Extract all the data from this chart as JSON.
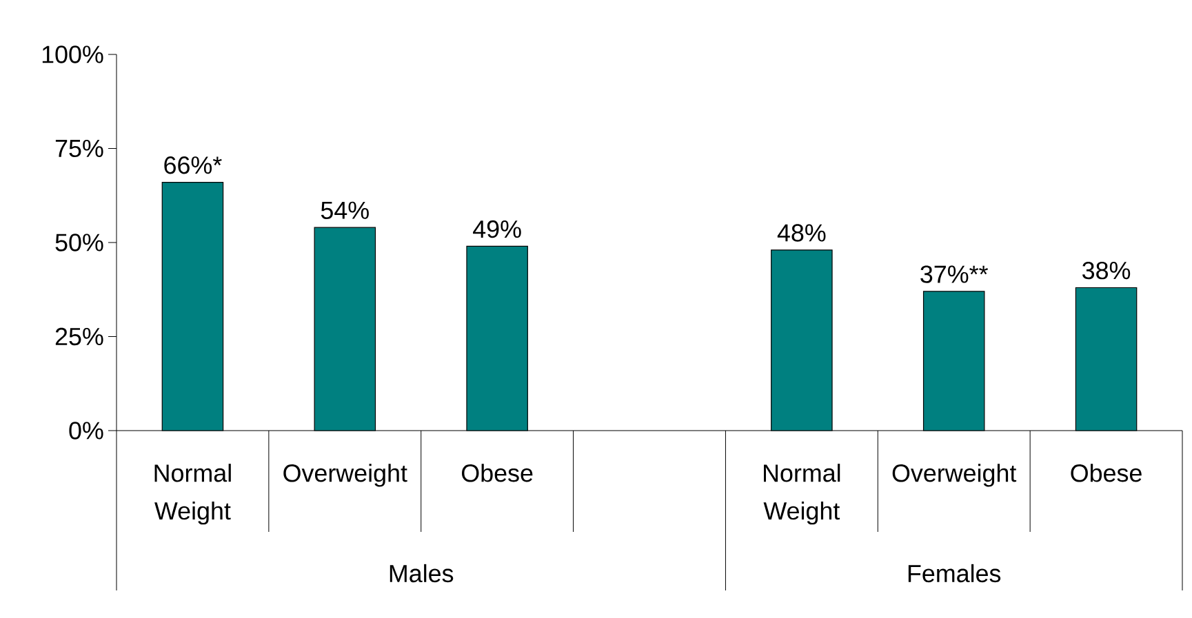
{
  "chart_data": {
    "type": "bar",
    "categories": [
      "Normal Weight",
      "Overweight",
      "Obese",
      null,
      "Normal Weight",
      "Overweight",
      "Obese"
    ],
    "values": [
      66,
      54,
      49,
      null,
      48,
      37,
      38
    ],
    "value_labels": [
      "66%*",
      "54%",
      "49%",
      null,
      "48%",
      "37%**",
      "38%"
    ],
    "color": "#008080",
    "ylim": [
      0,
      100
    ],
    "yticks": [
      {
        "value": 0,
        "label": "0%"
      },
      {
        "value": 25,
        "label": "25%"
      },
      {
        "value": 50,
        "label": "50%"
      },
      {
        "value": 75,
        "label": "75%"
      },
      {
        "value": 100,
        "label": "100%"
      }
    ],
    "annotations": [
      "Males",
      "Females"
    ],
    "grid": false
  }
}
